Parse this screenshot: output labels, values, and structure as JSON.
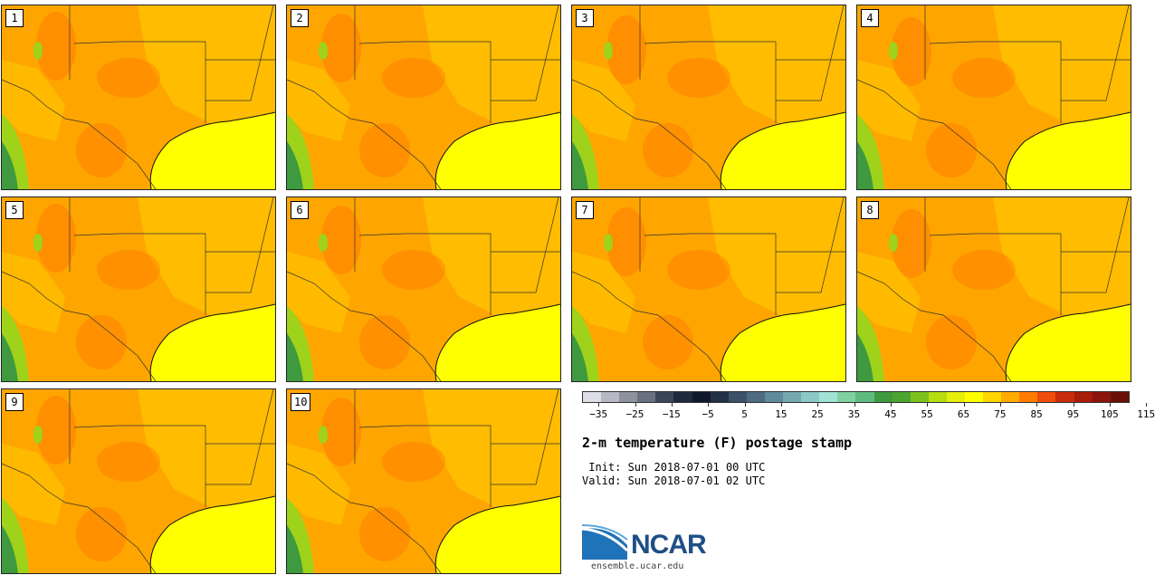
{
  "title": "2-m temperature (F) postage stamp",
  "init_line": " Init: Sun 2018-07-01 00 UTC",
  "valid_line": "Valid: Sun 2018-07-01 02 UTC",
  "logo_text": "NCAR",
  "logo_url": "ensemble.ucar.edu",
  "members": [
    "1",
    "2",
    "3",
    "4",
    "5",
    "6",
    "7",
    "8",
    "9",
    "10"
  ],
  "colorbar": {
    "colors": [
      "#dcdde6",
      "#b6b9c4",
      "#8c929e",
      "#687180",
      "#3b4758",
      "#1e2a3d",
      "#10192b",
      "#233247",
      "#3c5168",
      "#4f6b82",
      "#5f8a9b",
      "#74a9b1",
      "#8cc8c6",
      "#9ee3d3",
      "#7fd1a2",
      "#5fba7e",
      "#3f9a3f",
      "#4da430",
      "#7cc21c",
      "#b5dd10",
      "#e6ef0a",
      "#ffff00",
      "#ffd500",
      "#ffaa00",
      "#ff7b00",
      "#f04c0a",
      "#c92c0a",
      "#a81c0a",
      "#8a150b",
      "#6b1208"
    ],
    "tick_labels": [
      "−35",
      "−25",
      "−15",
      "−5",
      "5",
      "15",
      "25",
      "35",
      "45",
      "55",
      "65",
      "75",
      "85",
      "95",
      "105",
      "115"
    ]
  },
  "colors": {
    "land": "#ffa500",
    "hot": "#ff7b00",
    "warm": "#ffd000",
    "mild": "#ffff00",
    "green": "#9fd21a",
    "cool": "#3f9a3f",
    "ocean": "#ffff00"
  }
}
